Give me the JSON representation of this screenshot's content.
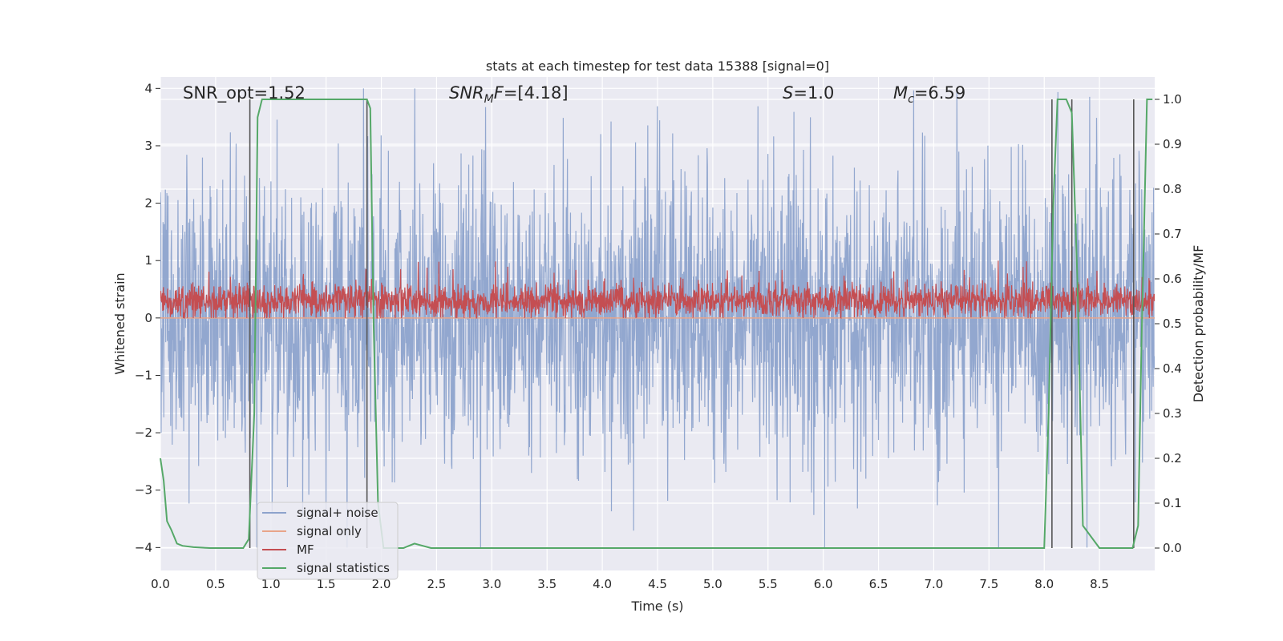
{
  "chart_data": {
    "type": "line",
    "title": "stats at each timestep for test data 15388 [signal=0]",
    "xlabel": "Time (s)",
    "ylabel_left": "Whitened strain",
    "ylabel_right": "Detection probability/MF",
    "xlim": [
      0.0,
      9.0
    ],
    "ylim_left": [
      -4.4,
      4.2
    ],
    "ylim_right": [
      -0.05,
      1.05
    ],
    "x_ticks": [
      "0.0",
      "0.5",
      "1.0",
      "1.5",
      "2.0",
      "2.5",
      "3.0",
      "3.5",
      "4.0",
      "4.5",
      "5.0",
      "5.5",
      "6.0",
      "6.5",
      "7.0",
      "7.5",
      "8.0",
      "8.5"
    ],
    "y_ticks_left": [
      "−4",
      "−3",
      "−2",
      "−1",
      "0",
      "1",
      "2",
      "3",
      "4"
    ],
    "y_ticks_right": [
      "0.0",
      "0.1",
      "0.2",
      "0.3",
      "0.4",
      "0.5",
      "0.6",
      "0.7",
      "0.8",
      "0.9",
      "1.0"
    ],
    "grid": true,
    "legend_position": "lower-left",
    "annotations": [
      {
        "id": "snr_opt",
        "text": "SNR_opt=1.52",
        "x": 0.19
      },
      {
        "id": "snr_mf",
        "text": "=[4.18]",
        "x": 2.6
      },
      {
        "id": "s",
        "text": "=1.0",
        "x": 5.6
      },
      {
        "id": "mc",
        "text": "=6.59",
        "x": 6.6
      }
    ],
    "series": [
      {
        "name": "signal+ noise",
        "color": "#8da3cc",
        "axis": "left",
        "kind": "noise",
        "amplitude_typical": 2.0,
        "amplitude_peak": 4.0
      },
      {
        "name": "signal only",
        "color": "#e8a58a",
        "axis": "left",
        "kind": "flat",
        "value": 0.0
      },
      {
        "name": "MF",
        "color": "#c44e52",
        "axis": "left",
        "kind": "noise",
        "range": [
          0.0,
          1.0
        ]
      },
      {
        "name": "signal statistics",
        "color": "#55a868",
        "axis": "right",
        "x": [
          0.0,
          0.03,
          0.06,
          0.1,
          0.15,
          0.2,
          0.3,
          0.45,
          0.6,
          0.75,
          0.8,
          0.85,
          0.88,
          0.92,
          1.0,
          1.5,
          1.8,
          1.87,
          1.9,
          1.93,
          1.97,
          2.02,
          2.2,
          2.3,
          2.45,
          2.6,
          5.0,
          8.0,
          8.04,
          8.08,
          8.12,
          8.2,
          8.25,
          8.3,
          8.35,
          8.5,
          8.7,
          8.8,
          8.85,
          8.88,
          8.93,
          8.98
        ],
        "y": [
          0.2,
          0.15,
          0.06,
          0.04,
          0.01,
          0.005,
          0.002,
          0.0,
          0.0,
          0.0,
          0.02,
          0.3,
          0.96,
          1.0,
          1.0,
          1.0,
          1.0,
          1.0,
          0.98,
          0.5,
          0.1,
          0.0,
          0.0,
          0.01,
          0.0,
          0.0,
          0.0,
          0.0,
          0.3,
          0.75,
          1.0,
          1.0,
          0.97,
          0.6,
          0.05,
          0.0,
          0.0,
          0.0,
          0.05,
          0.45,
          1.0,
          1.0
        ]
      }
    ],
    "vertical_markers": {
      "color": "#555555",
      "x": [
        0.81,
        1.87,
        8.07,
        8.25,
        8.81
      ],
      "y_range_right": [
        0.0,
        1.0
      ]
    }
  }
}
